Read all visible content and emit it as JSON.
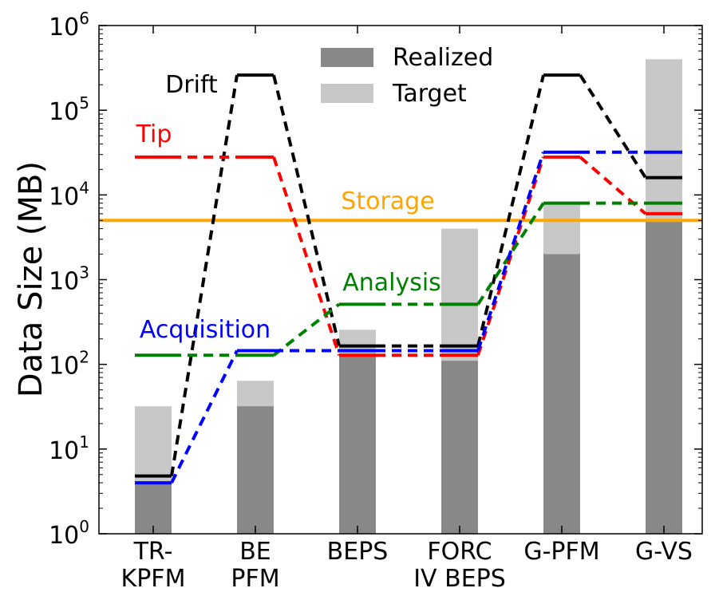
{
  "chart_data": {
    "type": "bar",
    "ylabel": "Data Size (MB)",
    "yscale": "log",
    "ylim": [
      1,
      1000000
    ],
    "y_ticks": [
      {
        "base": "10",
        "exp": "0"
      },
      {
        "base": "10",
        "exp": "1"
      },
      {
        "base": "10",
        "exp": "2"
      },
      {
        "base": "10",
        "exp": "3"
      },
      {
        "base": "10",
        "exp": "4"
      },
      {
        "base": "10",
        "exp": "5"
      },
      {
        "base": "10",
        "exp": "6"
      }
    ],
    "categories": [
      [
        "TR-",
        "KPFM"
      ],
      [
        "BE",
        "PFM"
      ],
      [
        "BEPS"
      ],
      [
        "FORC",
        "IV BEPS"
      ],
      [
        "G-PFM"
      ],
      [
        "G-VS"
      ]
    ],
    "bars": [
      {
        "name": "Target",
        "color": "#c8c8c8",
        "values": [
          32,
          64,
          256,
          4000,
          8000,
          400000
        ]
      },
      {
        "name": "Realized",
        "color": "#888888",
        "values": [
          4,
          32,
          128,
          110,
          2000,
          5000
        ]
      }
    ],
    "storage": {
      "name": "Storage",
      "color": "#ffa500",
      "value": 5000
    },
    "series": [
      {
        "name": "Drift",
        "color": "#000000",
        "label_color": "#000000",
        "values": [
          4.8,
          260000,
          165,
          165,
          260000,
          16000
        ]
      },
      {
        "name": "Tip",
        "color": "#ff0000",
        "label_color": "#ff0000",
        "values": [
          28000,
          28000,
          128,
          128,
          28000,
          6000
        ]
      },
      {
        "name": "Analysis",
        "color": "#008000",
        "label_color": "#008000",
        "values": [
          128,
          128,
          512,
          512,
          8000,
          8000
        ]
      },
      {
        "name": "Acquisition",
        "color": "#0000ff",
        "label_color": "#0000ff",
        "values": [
          4,
          145,
          145,
          145,
          32000,
          32000
        ]
      }
    ],
    "legend": {
      "placement": "top-center",
      "entries": [
        "Realized",
        "Target"
      ]
    }
  }
}
